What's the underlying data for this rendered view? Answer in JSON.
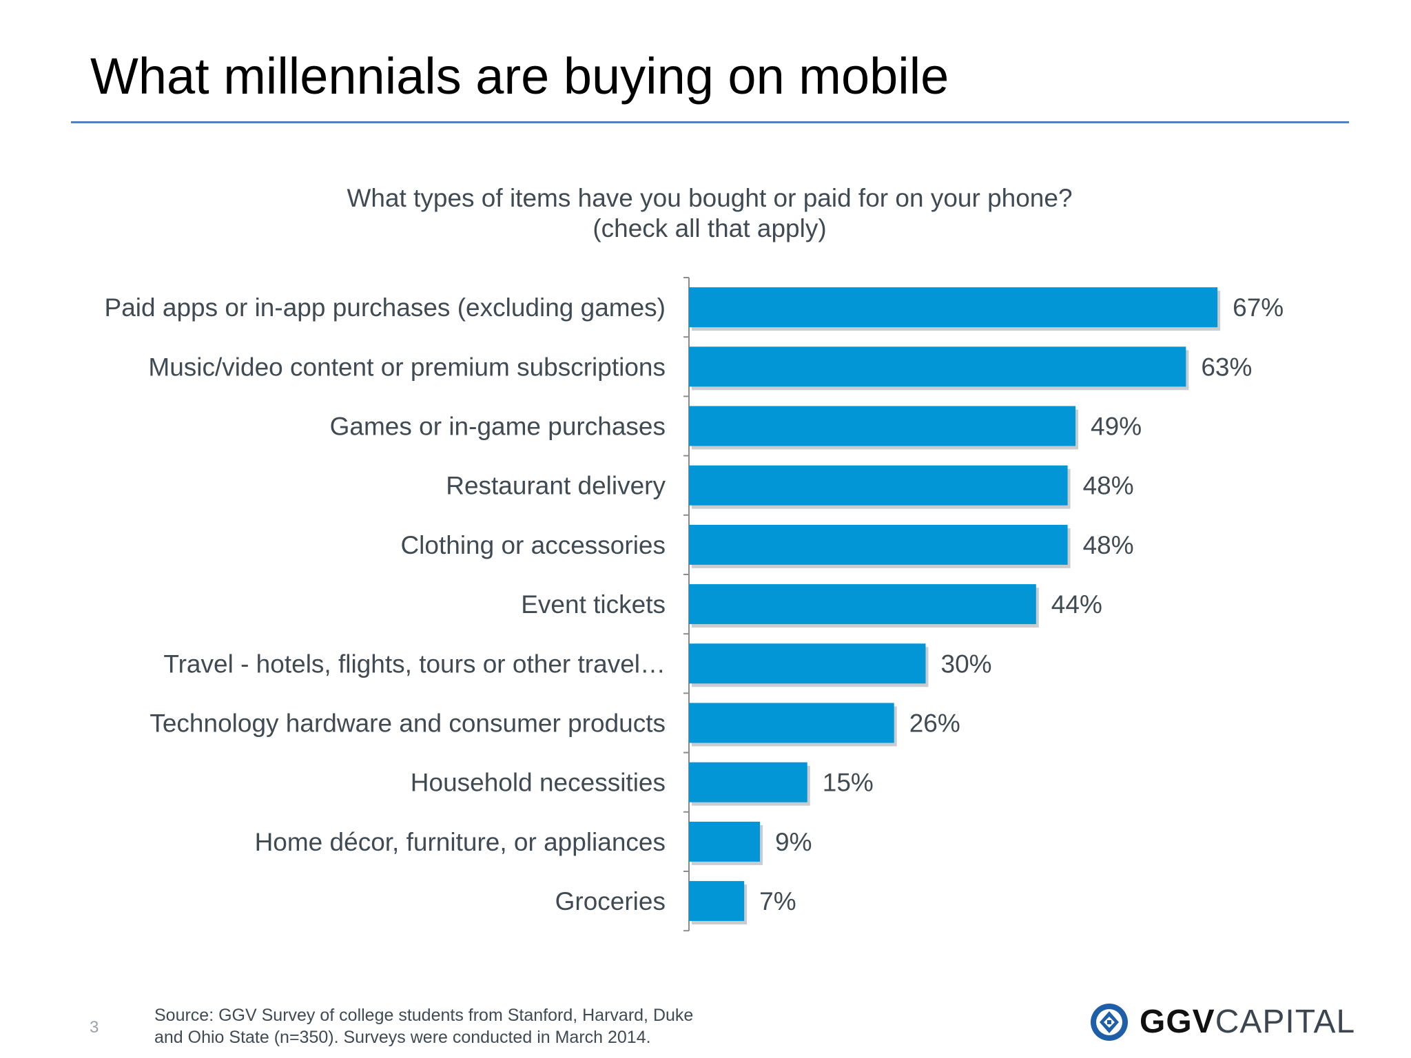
{
  "slide": {
    "title": "What millennials are buying on mobile",
    "page_number": "3",
    "source_lines": [
      "Source: GGV Survey of college students from Stanford, Harvard, Duke",
      "and Ohio State (n=350). Surveys were conducted in March 2014."
    ],
    "logo": {
      "bold": "GGV",
      "light": "CAPITAL",
      "icon": "ggv-logo-icon"
    }
  },
  "chart_data": {
    "type": "bar",
    "orientation": "horizontal",
    "title_lines": [
      "What types of items have you bought or paid for on your phone?",
      "(check all that apply)"
    ],
    "categories": [
      "Paid apps or in-app purchases (excluding games)",
      "Music/video content or premium subscriptions",
      "Games or in-game purchases",
      "Restaurant delivery",
      "Clothing or accessories",
      "Event tickets",
      "Travel - hotels, flights, tours or other travel…",
      "Technology hardware and consumer products",
      "Household necessities",
      "Home décor, furniture, or appliances",
      "Groceries"
    ],
    "values": [
      67,
      63,
      49,
      48,
      48,
      44,
      30,
      26,
      15,
      9,
      7
    ],
    "value_labels": [
      "67%",
      "63%",
      "49%",
      "48%",
      "48%",
      "44%",
      "30%",
      "26%",
      "15%",
      "9%",
      "7%"
    ],
    "xlim": [
      0,
      100
    ],
    "grid": false,
    "legend": "none",
    "colors": {
      "bar": "#0396d6",
      "shadow": "#c9cdd1",
      "axis": "#8c8c8c"
    }
  }
}
